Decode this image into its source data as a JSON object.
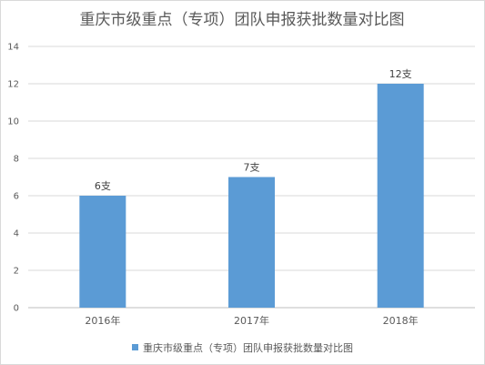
{
  "chart_data": {
    "type": "bar",
    "title": "重庆市级重点（专项）团队申报获批数量对比图",
    "categories": [
      "2016年",
      "2017年",
      "2018年"
    ],
    "series": [
      {
        "name": "重庆市级重点（专项）团队申报获批数量对比图",
        "values": [
          6,
          7,
          12
        ],
        "data_labels": [
          "6支",
          "7支",
          "12支"
        ]
      }
    ],
    "ylim": [
      0,
      14
    ],
    "yticks": [
      0,
      2,
      4,
      6,
      8,
      10,
      12,
      14
    ],
    "grid": true,
    "legend": "bottom",
    "colors": {
      "bar": "#5b9bd5",
      "grid": "#d9d9d9",
      "axis": "#bfbfbf",
      "text": "#595959"
    }
  }
}
